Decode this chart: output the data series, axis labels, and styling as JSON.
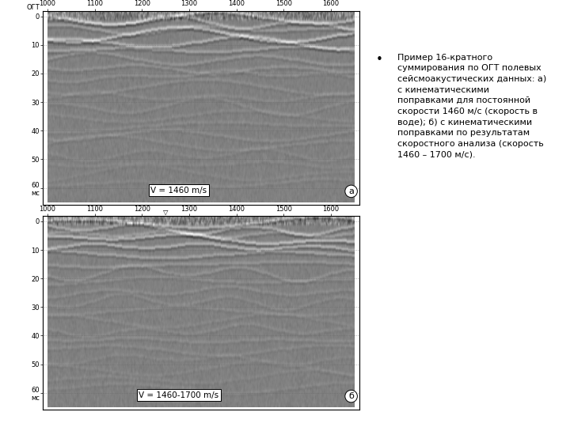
{
  "figure_width": 7.2,
  "figure_height": 5.4,
  "background_color": "#ffffff",
  "panel_a": {
    "label": "а",
    "velocity_text": "V = 1460 m/s",
    "x_ticks": [
      1000,
      1100,
      1200,
      1300,
      1400,
      1500,
      1600
    ],
    "y_ticks": [
      0,
      10,
      20,
      30,
      40,
      50,
      60
    ],
    "y_label": "мс"
  },
  "panel_b": {
    "label": "б",
    "velocity_text": "V = 1460-1700 m/s",
    "x_ticks": [
      1000,
      1100,
      1200,
      1300,
      1400,
      1500,
      1600
    ],
    "y_ticks": [
      0,
      10,
      20,
      30,
      40,
      50,
      60
    ],
    "y_label": "мс"
  },
  "bullet_text": "Пример 16-кратного\nсуммирования по ОГТ полевых\nсейсмоакустических данных: а)\nс кинематическими\nпоправками для постоянной\nскорости 1460 м/с (скорость в\nводе); б) с кинематическими\nпоправками по результатам\nскоростного анализа (скорость\n1460 – 1700 м/с).",
  "font_size_tick": 6,
  "font_size_label": 7,
  "font_size_text": 8.0
}
